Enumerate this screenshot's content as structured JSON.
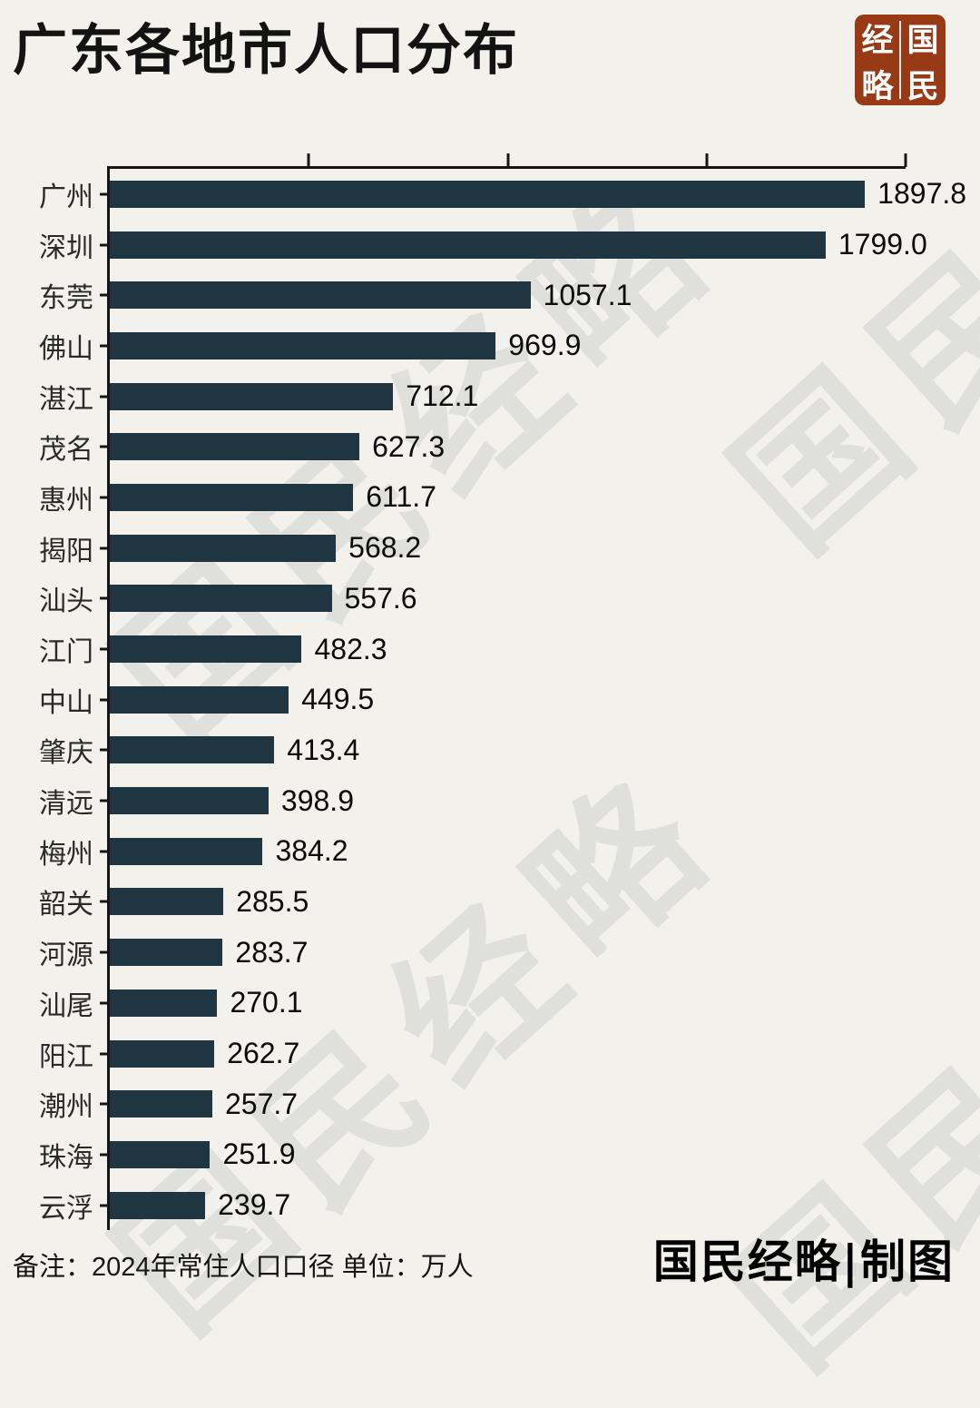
{
  "page": {
    "title": "广东各地市人口分布",
    "logo": {
      "name": "国民经略",
      "grid": [
        "经",
        "国",
        "略",
        "民"
      ]
    },
    "watermark_text": "国民经略",
    "footer_note": "备注：2024年常住人口口径  单位：万人",
    "footer_credit": "国民经略|制图"
  },
  "colors": {
    "background": "#f3f1ec",
    "bar": "#1f3542",
    "axis": "#161616",
    "logo_background": "#973a15",
    "logo_text": "#ffffff"
  },
  "chart_data": {
    "type": "bar",
    "orientation": "horizontal",
    "title": "广东各地市人口分布",
    "unit": "万人",
    "note": "备注：2024年常住人口口径 单位：万人",
    "categories": [
      "广州",
      "深圳",
      "东莞",
      "佛山",
      "湛江",
      "茂名",
      "惠州",
      "揭阳",
      "汕头",
      "江门",
      "中山",
      "肇庆",
      "清远",
      "梅州",
      "韶关",
      "河源",
      "汕尾",
      "阳江",
      "潮州",
      "珠海",
      "云浮"
    ],
    "values": [
      1897.8,
      1799.0,
      1057.1,
      969.9,
      712.1,
      627.3,
      611.7,
      568.2,
      557.6,
      482.3,
      449.5,
      413.4,
      398.9,
      384.2,
      285.5,
      283.7,
      270.1,
      262.7,
      257.7,
      251.9,
      239.7
    ],
    "xlim": [
      0,
      2000
    ],
    "x_ticks": [
      0,
      500,
      1000,
      1500,
      2000
    ],
    "value_labels": true,
    "grid": false,
    "legend": false,
    "bar_color": "#1f3542"
  }
}
